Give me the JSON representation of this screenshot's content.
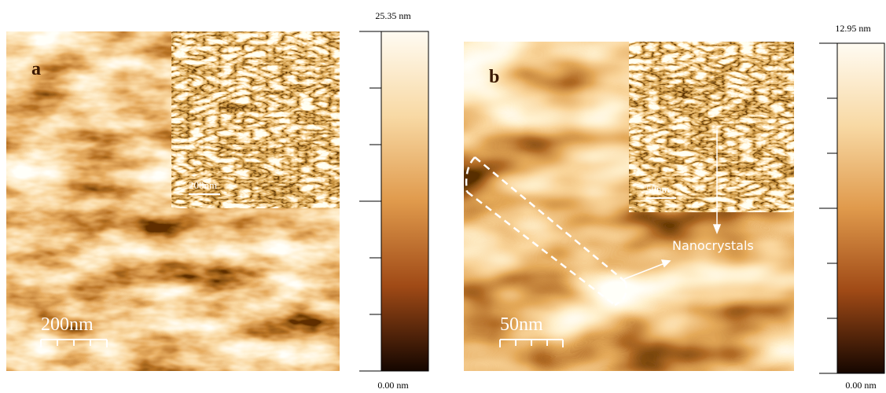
{
  "panels": [
    {
      "label": "a",
      "scale_bar": "200nm",
      "inset_scale_bar": "200nm",
      "colorbar_max": "25.35 nm",
      "colorbar_min": "0.00 nm"
    },
    {
      "label": "b",
      "scale_bar": "50nm",
      "inset_scale_bar": "50nm",
      "colorbar_max": "12.95 nm",
      "colorbar_min": "0.00 nm",
      "annotation": "Nanocrystals"
    }
  ]
}
